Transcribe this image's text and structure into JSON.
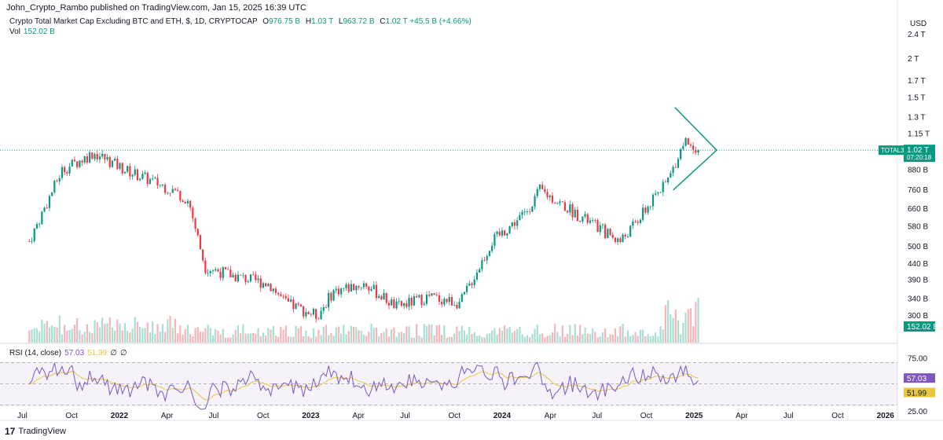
{
  "header": {
    "published": "John_Crypto_Rambo published on TradingView.com, Jan 15, 2025 16:39 UTC",
    "symbol_desc": "Crypto Total Market Cap Excluding BTC and ETH, $, 1D, CRYPTOCAP",
    "ohlc": {
      "o_label": "O",
      "o": "976.75 B",
      "h_label": "H",
      "h": "1.03 T",
      "l_label": "L",
      "l": "963.72 B",
      "c_label": "C",
      "c": "1.02 T",
      "change": "+45.5 B (+4.66%)"
    },
    "vol_label": "Vol",
    "vol_value": "152.02 B"
  },
  "rsi": {
    "label": "RSI (14, close)",
    "rsi_value": "57.03",
    "ma_value": "51.99",
    "extra1": "∅",
    "extra2": "∅",
    "axis_labels": [
      "75.00",
      "25.00"
    ],
    "badge_rsi": "57.03",
    "badge_ma": "51.99"
  },
  "price_axis": {
    "currency": "USD",
    "labels": [
      "2.4 T",
      "2 T",
      "1.7 T",
      "1.5 T",
      "1.3 T",
      "1.15 T",
      "880 B",
      "760 B",
      "660 B",
      "580 B",
      "500 B",
      "440 B",
      "390 B",
      "340 B",
      "300 B"
    ],
    "symbol_tag": "TOTAL3",
    "last_price": "1.02 T",
    "countdown": "07:20:18",
    "vol_badge": "152.02 B"
  },
  "time_axis": [
    "Jul",
    "Oct",
    "2022",
    "Apr",
    "Jul",
    "Oct",
    "2023",
    "Apr",
    "Jul",
    "Oct",
    "2024",
    "Apr",
    "Jul",
    "Oct",
    "2025",
    "Apr",
    "Jul",
    "Oct",
    "2026"
  ],
  "footer": {
    "brand": "TradingView",
    "logo_mark": "17"
  },
  "colors": {
    "up": "#089981",
    "down": "#f23645",
    "rsi": "#7e57c2",
    "rsi_ma": "#e8c83a",
    "accent": "#089981"
  },
  "chart_data": {
    "type": "candlestick",
    "title": "Crypto Total Market Cap Excluding BTC and ETH, $, 1D, CRYPTOCAP",
    "ylabel": "USD",
    "yscale": "log",
    "ylim": [
      270,
      2600
    ],
    "x": [
      "2021-07",
      "2021-09",
      "2021-11",
      "2022-01",
      "2022-04",
      "2022-05",
      "2022-06",
      "2022-08",
      "2022-10",
      "2022-11",
      "2023-01",
      "2023-02",
      "2023-04",
      "2023-06",
      "2023-08",
      "2023-10",
      "2023-12",
      "2024-02",
      "2024-03",
      "2024-05",
      "2024-08",
      "2024-09",
      "2024-11",
      "2024-12",
      "2025-01"
    ],
    "close": [
      520,
      880,
      1000,
      880,
      760,
      700,
      430,
      400,
      380,
      330,
      300,
      360,
      380,
      320,
      345,
      330,
      520,
      640,
      760,
      650,
      520,
      600,
      820,
      1100,
      1020
    ],
    "volume_last": 152.02,
    "rsi_last": 57.03,
    "rsi_ma_last": 51.99,
    "rsi_bands": [
      25,
      75
    ],
    "annotations": [
      "symmetrical triangle Dec 2024 – Jan 2025",
      "last price 1.02 T"
    ]
  }
}
